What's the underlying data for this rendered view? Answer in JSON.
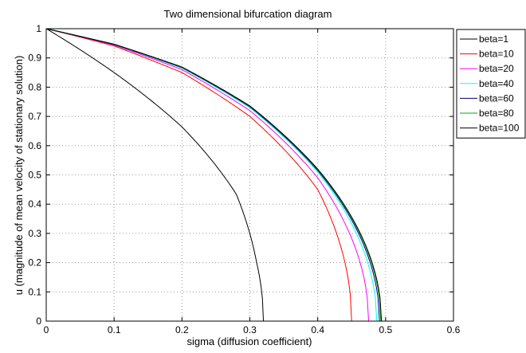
{
  "chart_data": {
    "type": "line",
    "title": "Two dimensional bifurcation diagram",
    "xlabel": "sigma (diffusion coefficient)",
    "ylabel": "u (magnitude of mean velocity of stationary solution)",
    "xlim": [
      0,
      0.6
    ],
    "ylim": [
      0,
      1
    ],
    "xticks": [
      "0",
      "0.1",
      "0.2",
      "0.3",
      "0.4",
      "0.5",
      "0.6"
    ],
    "yticks": [
      "0",
      "0.1",
      "0.2",
      "0.3",
      "0.4",
      "0.5",
      "0.6",
      "0.7",
      "0.8",
      "0.9",
      "1"
    ],
    "grid": true,
    "legend_position": "outside-top-right",
    "series": [
      {
        "name": "beta=1",
        "color": "#000000",
        "sigma_c": 0.32,
        "points": [
          [
            0,
            1
          ],
          [
            0.1,
            0.85
          ],
          [
            0.2,
            0.664
          ],
          [
            0.28,
            0.434
          ],
          [
            0.31,
            0.2
          ],
          [
            0.32,
            0
          ]
        ]
      },
      {
        "name": "beta=10",
        "color": "#ff0000",
        "sigma_c": 0.45,
        "points": [
          [
            0,
            1
          ],
          [
            0.1,
            0.941
          ],
          [
            0.2,
            0.85
          ],
          [
            0.3,
            0.7
          ],
          [
            0.4,
            0.45
          ],
          [
            0.45,
            0
          ]
        ]
      },
      {
        "name": "beta=20",
        "color": "#ff00ff",
        "sigma_c": 0.475,
        "points": [
          [
            0,
            1
          ],
          [
            0.1,
            0.944
          ],
          [
            0.2,
            0.86
          ],
          [
            0.3,
            0.72
          ],
          [
            0.4,
            0.49
          ],
          [
            0.475,
            0
          ]
        ]
      },
      {
        "name": "beta=40",
        "color": "#00ffff",
        "sigma_c": 0.487,
        "points": [
          [
            0,
            1
          ],
          [
            0.1,
            0.946
          ],
          [
            0.2,
            0.865
          ],
          [
            0.3,
            0.73
          ],
          [
            0.4,
            0.51
          ],
          [
            0.487,
            0
          ]
        ]
      },
      {
        "name": "beta=60",
        "color": "#00007f",
        "sigma_c": 0.491,
        "points": [
          [
            0,
            1
          ],
          [
            0.1,
            0.946
          ],
          [
            0.2,
            0.867
          ],
          [
            0.3,
            0.733
          ],
          [
            0.4,
            0.515
          ],
          [
            0.491,
            0
          ]
        ]
      },
      {
        "name": "beta=80",
        "color": "#00aa00",
        "sigma_c": 0.493,
        "points": [
          [
            0,
            1
          ],
          [
            0.1,
            0.947
          ],
          [
            0.2,
            0.868
          ],
          [
            0.3,
            0.735
          ],
          [
            0.4,
            0.518
          ],
          [
            0.493,
            0
          ]
        ]
      },
      {
        "name": "beta=100",
        "color": "#000000",
        "sigma_c": 0.494,
        "points": [
          [
            0,
            1
          ],
          [
            0.1,
            0.947
          ],
          [
            0.2,
            0.869
          ],
          [
            0.3,
            0.736
          ],
          [
            0.4,
            0.52
          ],
          [
            0.494,
            0
          ]
        ]
      }
    ]
  }
}
